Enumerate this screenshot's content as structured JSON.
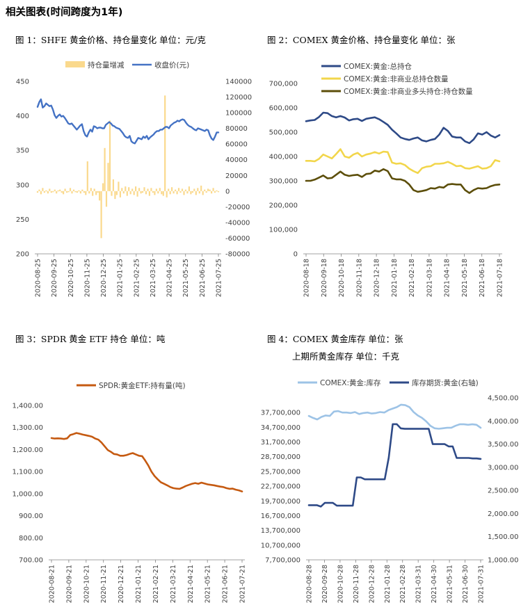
{
  "page": {
    "title": "相关图表(时间跨度为1年)",
    "fig1_caption": "图 1：SHFE 黄金价格、持仓量变化   单位：元/克",
    "fig2_caption": "图 2：COMEX 黄金价格、持仓量变化   单位：张",
    "fig3_caption": "图 3：SPDR 黄金 ETF 持仓   单位：吨",
    "fig4_caption": "图 4：COMEX 黄金库存   单位：张",
    "fig4_caption2": "上期所黄金库存   单位：千克"
  },
  "chart_data": [
    {
      "id": "fig1",
      "type": "line",
      "legend_position": "top",
      "x_ticks": [
        "2020-08-25",
        "2020-09-25",
        "2020-10-25",
        "2020-11-25",
        "2020-12-25",
        "2021-01-25",
        "2021-02-25",
        "2021-03-25",
        "2021-04-25",
        "2021-05-25",
        "2021-06-25",
        "2021-07-25"
      ],
      "y_left": {
        "ticks": [
          "200",
          "250",
          "300",
          "350",
          "400",
          "450"
        ],
        "range": [
          200,
          450
        ]
      },
      "y_right": {
        "ticks": [
          "-80000",
          "-60000",
          "-40000",
          "-20000",
          "0",
          "20000",
          "40000",
          "60000",
          "80000",
          "100000",
          "120000",
          "140000"
        ],
        "range": [
          -80000,
          140000
        ]
      },
      "series": [
        {
          "name": "持仓量增减",
          "kind": "bar",
          "axis": "right",
          "color": "#FAD98D",
          "values": [
            -2000,
            2000,
            -4000,
            4000,
            -2000,
            1000,
            -3000,
            3000,
            -2000,
            -1000,
            2000,
            -3000,
            1000,
            2000,
            -2000,
            -4000,
            3000,
            -2000,
            -1000,
            4000,
            -3000,
            2000,
            -1000,
            -2000,
            1000,
            -3000,
            2000,
            -2000,
            -5000,
            38000,
            -3000,
            4000,
            -6000,
            3000,
            -5000,
            -2000,
            -12000,
            -60000,
            10000,
            55000,
            -20000,
            36000,
            90000,
            -6000,
            15000,
            -10000,
            -5000,
            12000,
            -8000,
            4000,
            -3000,
            6000,
            -6000,
            5000,
            -4000,
            3000,
            -5000,
            6000,
            -7000,
            4000,
            -3000,
            -2000,
            5000,
            -4000,
            3000,
            -6000,
            4000,
            -2000,
            -5000,
            3000,
            -3000,
            4000,
            -4000,
            -6000,
            122000,
            -8000,
            3000,
            -4000,
            5000,
            -3000,
            2000,
            -4000,
            4000,
            -2000,
            3000,
            -5000,
            2000,
            -3000,
            6000,
            -4000,
            -2000,
            3000,
            -5000,
            4000,
            -3000,
            7000,
            -5000,
            2000,
            -2000,
            3000,
            2000,
            -3000,
            4000,
            -2000,
            1000,
            -1000
          ]
        },
        {
          "name": "收盘价(元)",
          "kind": "line",
          "axis": "left",
          "color": "#4472C4",
          "values": [
            413,
            420,
            424,
            412,
            414,
            418,
            416,
            414,
            415,
            409,
            401,
            397,
            400,
            402,
            399,
            400,
            397,
            393,
            389,
            388,
            389,
            386,
            383,
            380,
            383,
            386,
            388,
            378,
            372,
            370,
            376,
            380,
            377,
            385,
            384,
            382,
            383,
            383,
            382,
            382,
            387,
            389,
            391,
            389,
            386,
            385,
            383,
            382,
            381,
            378,
            375,
            371,
            369,
            368,
            371,
            363,
            361,
            360,
            364,
            368,
            367,
            366,
            370,
            368,
            371,
            366,
            369,
            371,
            373,
            376,
            378,
            378,
            380,
            380,
            382,
            384,
            384,
            382,
            386,
            388,
            390,
            391,
            393,
            392,
            394,
            395,
            394,
            390,
            387,
            385,
            384,
            382,
            380,
            379,
            382,
            381,
            380,
            379,
            378,
            380,
            379,
            372,
            367,
            365,
            370,
            376,
            376
          ]
        }
      ]
    },
    {
      "id": "fig2",
      "type": "line",
      "legend_position": "top-left",
      "x_ticks": [
        "2020-08-18",
        "2020-09-18",
        "2020-10-18",
        "2020-11-18",
        "2020-12-18",
        "2021-01-18",
        "2021-02-18",
        "2021-03-18",
        "2021-04-18",
        "2021-05-18",
        "2021-06-18",
        "2021-07-18"
      ],
      "y": {
        "ticks": [
          "0",
          "100,000",
          "200,000",
          "300,000",
          "400,000",
          "500,000",
          "600,000",
          "700,000"
        ],
        "range": [
          0,
          700000
        ]
      },
      "series": [
        {
          "name": "COMEX:黄金:总持仓",
          "color": "#2E4A87",
          "values": [
            545000,
            548000,
            550000,
            562000,
            580000,
            578000,
            566000,
            561000,
            566000,
            560000,
            548000,
            553000,
            555000,
            546000,
            555000,
            558000,
            561000,
            553000,
            542000,
            530000,
            510000,
            495000,
            478000,
            472000,
            468000,
            474000,
            478000,
            466000,
            462000,
            468000,
            472000,
            490000,
            518000,
            505000,
            482000,
            478000,
            478000,
            462000,
            455000,
            470000,
            495000,
            490000,
            500000,
            486000,
            478000,
            488000
          ]
        },
        {
          "name": "COMEX:黄金:非商业总持仓数量",
          "color": "#F2D64B",
          "values": [
            382000,
            382000,
            380000,
            390000,
            408000,
            400000,
            392000,
            410000,
            430000,
            400000,
            395000,
            408000,
            415000,
            400000,
            408000,
            412000,
            418000,
            412000,
            420000,
            418000,
            375000,
            370000,
            372000,
            365000,
            350000,
            340000,
            332000,
            352000,
            358000,
            360000,
            370000,
            370000,
            372000,
            378000,
            370000,
            360000,
            362000,
            352000,
            350000,
            355000,
            360000,
            350000,
            352000,
            360000,
            385000,
            380000
          ]
        },
        {
          "name": "COMEX:黄金:非商业多头持仓:持仓数量",
          "color": "#5C4E0A",
          "values": [
            300000,
            300000,
            305000,
            313000,
            322000,
            310000,
            312000,
            325000,
            338000,
            325000,
            320000,
            323000,
            325000,
            316000,
            328000,
            330000,
            342000,
            338000,
            348000,
            340000,
            310000,
            306000,
            306000,
            300000,
            285000,
            262000,
            255000,
            258000,
            262000,
            270000,
            268000,
            275000,
            272000,
            285000,
            287000,
            285000,
            285000,
            262000,
            250000,
            262000,
            270000,
            268000,
            270000,
            278000,
            283000,
            285000
          ]
        }
      ]
    },
    {
      "id": "fig3",
      "type": "line",
      "legend_position": "top-left",
      "x_ticks": [
        "2020-08-21",
        "2020-09-21",
        "2020-10-21",
        "2020-11-21",
        "2020-12-21",
        "2021-01-21",
        "2021-02-21",
        "2021-03-21",
        "2021-04-21",
        "2021-05-21",
        "2021-06-21",
        "2021-07-21"
      ],
      "y": {
        "ticks": [
          "700.00",
          "800.00",
          "900.00",
          "1,000.00",
          "1,100.00",
          "1,200.00",
          "1,300.00",
          "1,400.00"
        ],
        "range": [
          700,
          1400
        ]
      },
      "series": [
        {
          "name": "SPDR:黄金ETF:持有量(吨)",
          "color": "#C55A11",
          "values": [
            1252,
            1250,
            1251,
            1250,
            1248,
            1251,
            1266,
            1270,
            1275,
            1272,
            1268,
            1265,
            1262,
            1258,
            1250,
            1245,
            1232,
            1215,
            1198,
            1190,
            1180,
            1178,
            1172,
            1172,
            1175,
            1180,
            1184,
            1178,
            1172,
            1170,
            1150,
            1128,
            1100,
            1080,
            1065,
            1052,
            1045,
            1038,
            1030,
            1025,
            1023,
            1022,
            1028,
            1035,
            1040,
            1045,
            1048,
            1045,
            1050,
            1046,
            1042,
            1040,
            1038,
            1035,
            1032,
            1030,
            1025,
            1022,
            1023,
            1018,
            1015,
            1010
          ]
        }
      ]
    },
    {
      "id": "fig4",
      "type": "line",
      "legend_position": "top",
      "x_ticks": [
        "2020-08-28",
        "2020-09-28",
        "2020-10-28",
        "2020-11-28",
        "2020-12-28",
        "2021-01-28",
        "2021-02-28",
        "2021-03-31",
        "2021-04-30",
        "2021-05-31",
        "2021-06-30",
        "2021-07-31"
      ],
      "y_left": {
        "ticks": [
          "7,700,000",
          "10,700,000",
          "13,700,000",
          "16,700,000",
          "19,700,000",
          "22,700,000",
          "25,700,000",
          "28,700,000",
          "31,700,000",
          "34,700,000",
          "37,700,000"
        ],
        "range": [
          7700000,
          40700000
        ]
      },
      "y_right": {
        "ticks": [
          "1,000.00",
          "1,500.00",
          "2,000.00",
          "2,500.00",
          "3,000.00",
          "3,500.00",
          "4,000.00",
          "4,500.00"
        ],
        "range": [
          1000,
          4500
        ]
      },
      "series": [
        {
          "name": "COMEX:黄金:库存",
          "axis": "left",
          "color": "#9DC3E6",
          "values": [
            37000000,
            36600000,
            36300000,
            36800000,
            37100000,
            37000000,
            37900000,
            38000000,
            37700000,
            37700000,
            37600000,
            37800000,
            37400000,
            37600000,
            37700000,
            37500000,
            37600000,
            37800000,
            37700000,
            38200000,
            38500000,
            38800000,
            39300000,
            39200000,
            38800000,
            37800000,
            37100000,
            36600000,
            35900000,
            35000000,
            34500000,
            34400000,
            34500000,
            34600000,
            34600000,
            35000000,
            35300000,
            35300000,
            35200000,
            35300000,
            35200000,
            34600000
          ]
        },
        {
          "name": "库存期货:黄金(右轴)",
          "axis": "right",
          "color": "#2E4A87",
          "values": [
            2180,
            2180,
            2180,
            2150,
            2230,
            2230,
            2230,
            2170,
            2170,
            2170,
            2170,
            2170,
            2780,
            2780,
            2740,
            2740,
            2740,
            2740,
            2740,
            2740,
            3210,
            3930,
            3930,
            3840,
            3830,
            3830,
            3830,
            3830,
            3830,
            3830,
            3830,
            3500,
            3500,
            3500,
            3500,
            3450,
            3450,
            3200,
            3200,
            3200,
            3200,
            3190,
            3190,
            3180
          ]
        }
      ]
    }
  ]
}
